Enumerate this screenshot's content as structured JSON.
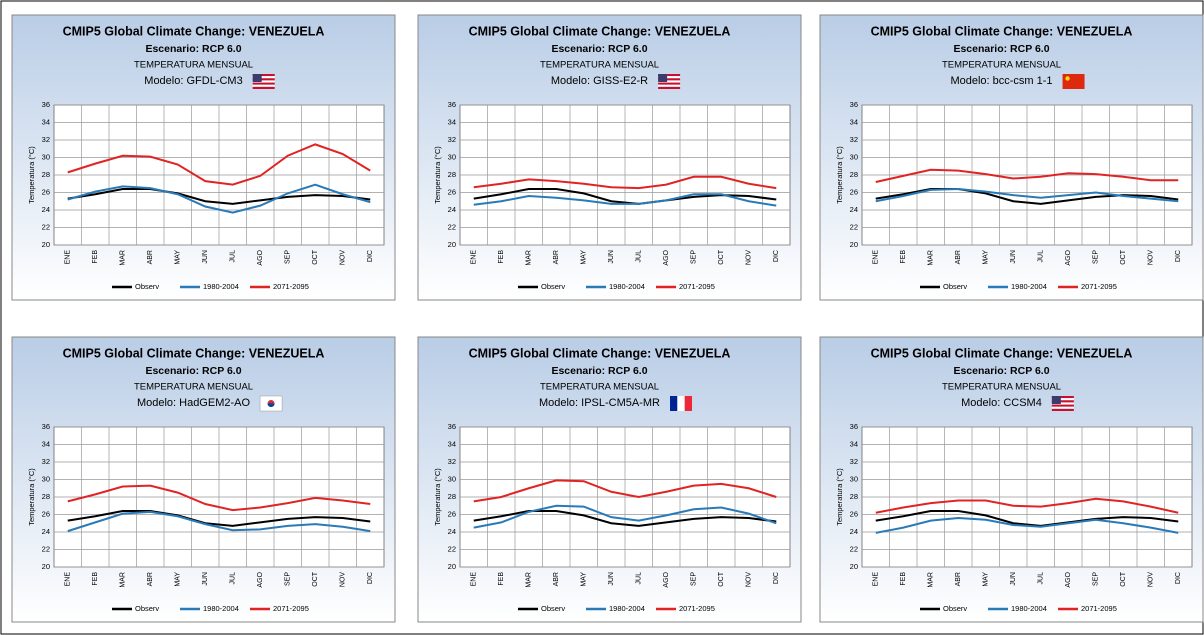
{
  "chart_data": [
    {
      "type": "line",
      "title": "CMIP5 Global Climate Change: VENEZUELA",
      "scenario": "Escenario: RCP 6.0",
      "variable": "TEMPERATURA MENSUAL",
      "model": "Modelo: GFDL-CM3",
      "y_label": "Temperatura (°C)",
      "categories": [
        "ENE",
        "FEB",
        "MAR",
        "ABR",
        "MAY",
        "JUN",
        "JUL",
        "AGO",
        "SEP",
        "OCT",
        "NOV",
        "DIC"
      ],
      "ylim": [
        20,
        36
      ],
      "yticks": [
        20,
        22,
        24,
        26,
        28,
        30,
        32,
        34,
        36
      ],
      "grid": true,
      "legend": "bottom",
      "series": [
        {
          "name": "Observ",
          "color": "#000000",
          "values": [
            25.3,
            25.8,
            26.4,
            26.4,
            25.9,
            25.0,
            24.7,
            25.1,
            25.5,
            25.7,
            25.6,
            25.2
          ]
        },
        {
          "name": "1980-2004",
          "color": "#2a7ab8",
          "values": [
            25.2,
            26.1,
            26.7,
            26.5,
            25.8,
            24.4,
            23.7,
            24.5,
            25.9,
            26.9,
            25.8,
            24.9
          ]
        },
        {
          "name": "2071-2095",
          "color": "#e02424",
          "values": [
            28.3,
            29.3,
            30.2,
            30.1,
            29.2,
            27.3,
            26.9,
            27.9,
            30.2,
            31.5,
            30.4,
            28.5
          ]
        }
      ]
    },
    {
      "type": "line",
      "title": "CMIP5 Global Climate Change: VENEZUELA",
      "scenario": "Escenario: RCP 6.0",
      "variable": "TEMPERATURA MENSUAL",
      "model": "Modelo: GISS-E2-R",
      "y_label": "Temperatura (°C)",
      "categories": [
        "ENE",
        "FEB",
        "MAR",
        "ABR",
        "MAY",
        "JUN",
        "JUL",
        "AGO",
        "SEP",
        "OCT",
        "NOV",
        "DIC"
      ],
      "ylim": [
        20,
        36
      ],
      "yticks": [
        20,
        22,
        24,
        26,
        28,
        30,
        32,
        34,
        36
      ],
      "grid": true,
      "legend": "bottom",
      "series": [
        {
          "name": "Observ",
          "color": "#000000",
          "values": [
            25.3,
            25.8,
            26.4,
            26.4,
            25.9,
            25.0,
            24.7,
            25.1,
            25.5,
            25.7,
            25.6,
            25.2
          ]
        },
        {
          "name": "1980-2004",
          "color": "#2a7ab8",
          "values": [
            24.6,
            25.0,
            25.6,
            25.4,
            25.1,
            24.7,
            24.7,
            25.1,
            25.8,
            25.8,
            25.0,
            24.5
          ]
        },
        {
          "name": "2071-2095",
          "color": "#e02424",
          "values": [
            26.6,
            27.0,
            27.5,
            27.3,
            27.0,
            26.6,
            26.5,
            26.9,
            27.8,
            27.8,
            27.0,
            26.5
          ]
        }
      ]
    },
    {
      "type": "line",
      "title": "CMIP5 Global Climate Change: VENEZUELA",
      "scenario": "Escenario: RCP 6.0",
      "variable": "TEMPERATURA MENSUAL",
      "model": "Modelo: bcc-csm 1-1",
      "y_label": "Temperatura (°C)",
      "categories": [
        "ENE",
        "FEB",
        "MAR",
        "ABR",
        "MAY",
        "JUN",
        "JUL",
        "AGO",
        "SEP",
        "OCT",
        "NOV",
        "DIC"
      ],
      "ylim": [
        20,
        36
      ],
      "yticks": [
        20,
        22,
        24,
        26,
        28,
        30,
        32,
        34,
        36
      ],
      "grid": true,
      "legend": "bottom",
      "series": [
        {
          "name": "Observ",
          "color": "#000000",
          "values": [
            25.3,
            25.8,
            26.4,
            26.4,
            25.9,
            25.0,
            24.7,
            25.1,
            25.5,
            25.7,
            25.6,
            25.2
          ]
        },
        {
          "name": "1980-2004",
          "color": "#2a7ab8",
          "values": [
            25.0,
            25.6,
            26.3,
            26.4,
            26.1,
            25.7,
            25.4,
            25.7,
            26.0,
            25.6,
            25.3,
            25.0
          ]
        },
        {
          "name": "2071-2095",
          "color": "#e02424",
          "values": [
            27.2,
            27.9,
            28.6,
            28.5,
            28.1,
            27.6,
            27.8,
            28.2,
            28.1,
            27.8,
            27.4,
            27.4
          ]
        }
      ]
    },
    {
      "type": "line",
      "title": "CMIP5 Global Climate Change: VENEZUELA",
      "scenario": "Escenario: RCP 6.0",
      "variable": "TEMPERATURA MENSUAL",
      "model": "Modelo: HadGEM2-AO",
      "y_label": "Temperatura (°C)",
      "categories": [
        "ENE",
        "FEB",
        "MAR",
        "ABR",
        "MAY",
        "JUN",
        "JUL",
        "AGO",
        "SEP",
        "OCT",
        "NOV",
        "DIC"
      ],
      "ylim": [
        20,
        36
      ],
      "yticks": [
        20,
        22,
        24,
        26,
        28,
        30,
        32,
        34,
        36
      ],
      "grid": true,
      "legend": "bottom",
      "series": [
        {
          "name": "Observ",
          "color": "#000000",
          "values": [
            25.3,
            25.8,
            26.4,
            26.4,
            25.9,
            25.0,
            24.7,
            25.1,
            25.5,
            25.7,
            25.6,
            25.2
          ]
        },
        {
          "name": "1980-2004",
          "color": "#2a7ab8",
          "values": [
            24.1,
            25.1,
            26.1,
            26.3,
            25.8,
            24.9,
            24.2,
            24.3,
            24.7,
            24.9,
            24.6,
            24.1
          ]
        },
        {
          "name": "2071-2095",
          "color": "#e02424",
          "values": [
            27.5,
            28.3,
            29.2,
            29.3,
            28.5,
            27.2,
            26.5,
            26.8,
            27.3,
            27.9,
            27.6,
            27.2
          ]
        }
      ]
    },
    {
      "type": "line",
      "title": "CMIP5 Global Climate Change: VENEZUELA",
      "scenario": "Escenario: RCP 6.0",
      "variable": "TEMPERATURA MENSUAL",
      "model": "Modelo: IPSL-CM5A-MR",
      "y_label": "Temperatura (°C)",
      "categories": [
        "ENE",
        "FEB",
        "MAR",
        "ABR",
        "MAY",
        "JUN",
        "JUL",
        "AGO",
        "SEP",
        "OCT",
        "NOV",
        "DIC"
      ],
      "ylim": [
        20,
        36
      ],
      "yticks": [
        20,
        22,
        24,
        26,
        28,
        30,
        32,
        34,
        36
      ],
      "grid": true,
      "legend": "bottom",
      "series": [
        {
          "name": "Observ",
          "color": "#000000",
          "values": [
            25.3,
            25.8,
            26.4,
            26.4,
            25.9,
            25.0,
            24.7,
            25.1,
            25.5,
            25.7,
            25.6,
            25.2
          ]
        },
        {
          "name": "1980-2004",
          "color": "#2a7ab8",
          "values": [
            24.5,
            25.1,
            26.3,
            27.0,
            26.9,
            25.7,
            25.3,
            25.9,
            26.6,
            26.8,
            26.1,
            25.0
          ]
        },
        {
          "name": "2071-2095",
          "color": "#e02424",
          "values": [
            27.5,
            28.0,
            29.0,
            29.9,
            29.8,
            28.6,
            28.0,
            28.6,
            29.3,
            29.5,
            29.0,
            28.0
          ]
        }
      ]
    },
    {
      "type": "line",
      "title": "CMIP5 Global Climate Change: VENEZUELA",
      "scenario": "Escenario: RCP 6.0",
      "variable": "TEMPERATURA MENSUAL",
      "model": "Modelo: CCSM4",
      "y_label": "Temperatura (°C)",
      "categories": [
        "ENE",
        "FEB",
        "MAR",
        "ABR",
        "MAY",
        "JUN",
        "JUL",
        "AGO",
        "SEP",
        "OCT",
        "NOV",
        "DIC"
      ],
      "ylim": [
        20,
        36
      ],
      "yticks": [
        20,
        22,
        24,
        26,
        28,
        30,
        32,
        34,
        36
      ],
      "grid": true,
      "legend": "bottom",
      "series": [
        {
          "name": "Observ",
          "color": "#000000",
          "values": [
            25.3,
            25.8,
            26.4,
            26.4,
            25.9,
            25.0,
            24.7,
            25.1,
            25.5,
            25.7,
            25.6,
            25.2
          ]
        },
        {
          "name": "1980-2004",
          "color": "#2a7ab8",
          "values": [
            23.9,
            24.5,
            25.3,
            25.6,
            25.4,
            24.8,
            24.6,
            25.0,
            25.4,
            25.0,
            24.5,
            23.9
          ]
        },
        {
          "name": "2071-2095",
          "color": "#e02424",
          "values": [
            26.2,
            26.8,
            27.3,
            27.6,
            27.6,
            27.0,
            26.9,
            27.3,
            27.8,
            27.5,
            26.9,
            26.2
          ]
        }
      ]
    }
  ]
}
